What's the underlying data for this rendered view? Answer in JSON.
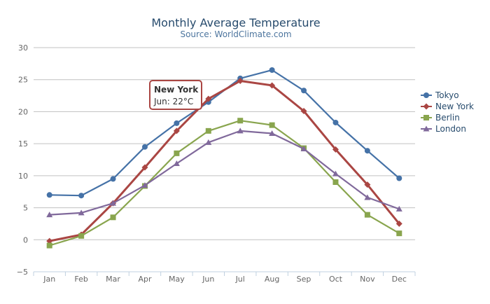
{
  "chart_data": {
    "type": "line",
    "title": "Monthly Average Temperature",
    "subtitle": "Source: WorldClimate.com",
    "categories": [
      "Jan",
      "Feb",
      "Mar",
      "Apr",
      "May",
      "Jun",
      "Jul",
      "Aug",
      "Sep",
      "Oct",
      "Nov",
      "Dec"
    ],
    "y_ticks": [
      "−5",
      "0",
      "5",
      "10",
      "15",
      "20",
      "25",
      "30"
    ],
    "ylim": [
      -5,
      30
    ],
    "tick_interval": 5,
    "grid": true,
    "legend_position": "right",
    "series": [
      {
        "name": "Tokyo",
        "color": "#4572a7",
        "marker": "circle",
        "values": [
          7.0,
          6.9,
          9.5,
          14.5,
          18.2,
          21.5,
          25.2,
          26.5,
          23.3,
          18.3,
          13.9,
          9.6
        ]
      },
      {
        "name": "New York",
        "color": "#aa4643",
        "marker": "diamond",
        "values": [
          -0.2,
          0.8,
          5.7,
          11.3,
          17.0,
          22.0,
          24.8,
          24.1,
          20.1,
          14.1,
          8.6,
          2.5
        ]
      },
      {
        "name": "Berlin",
        "color": "#89a54e",
        "marker": "square",
        "values": [
          -0.9,
          0.6,
          3.5,
          8.4,
          13.5,
          17.0,
          18.6,
          17.9,
          14.3,
          9.0,
          3.9,
          1.0
        ]
      },
      {
        "name": "London",
        "color": "#80699b",
        "marker": "triangle",
        "values": [
          3.9,
          4.2,
          5.7,
          8.5,
          11.9,
          15.2,
          17.0,
          16.6,
          14.2,
          10.3,
          6.6,
          4.8
        ]
      }
    ],
    "tooltip": {
      "series": "New York",
      "title": "New York",
      "text": "Jun: 22°C",
      "border_color": "#aa4643"
    }
  }
}
